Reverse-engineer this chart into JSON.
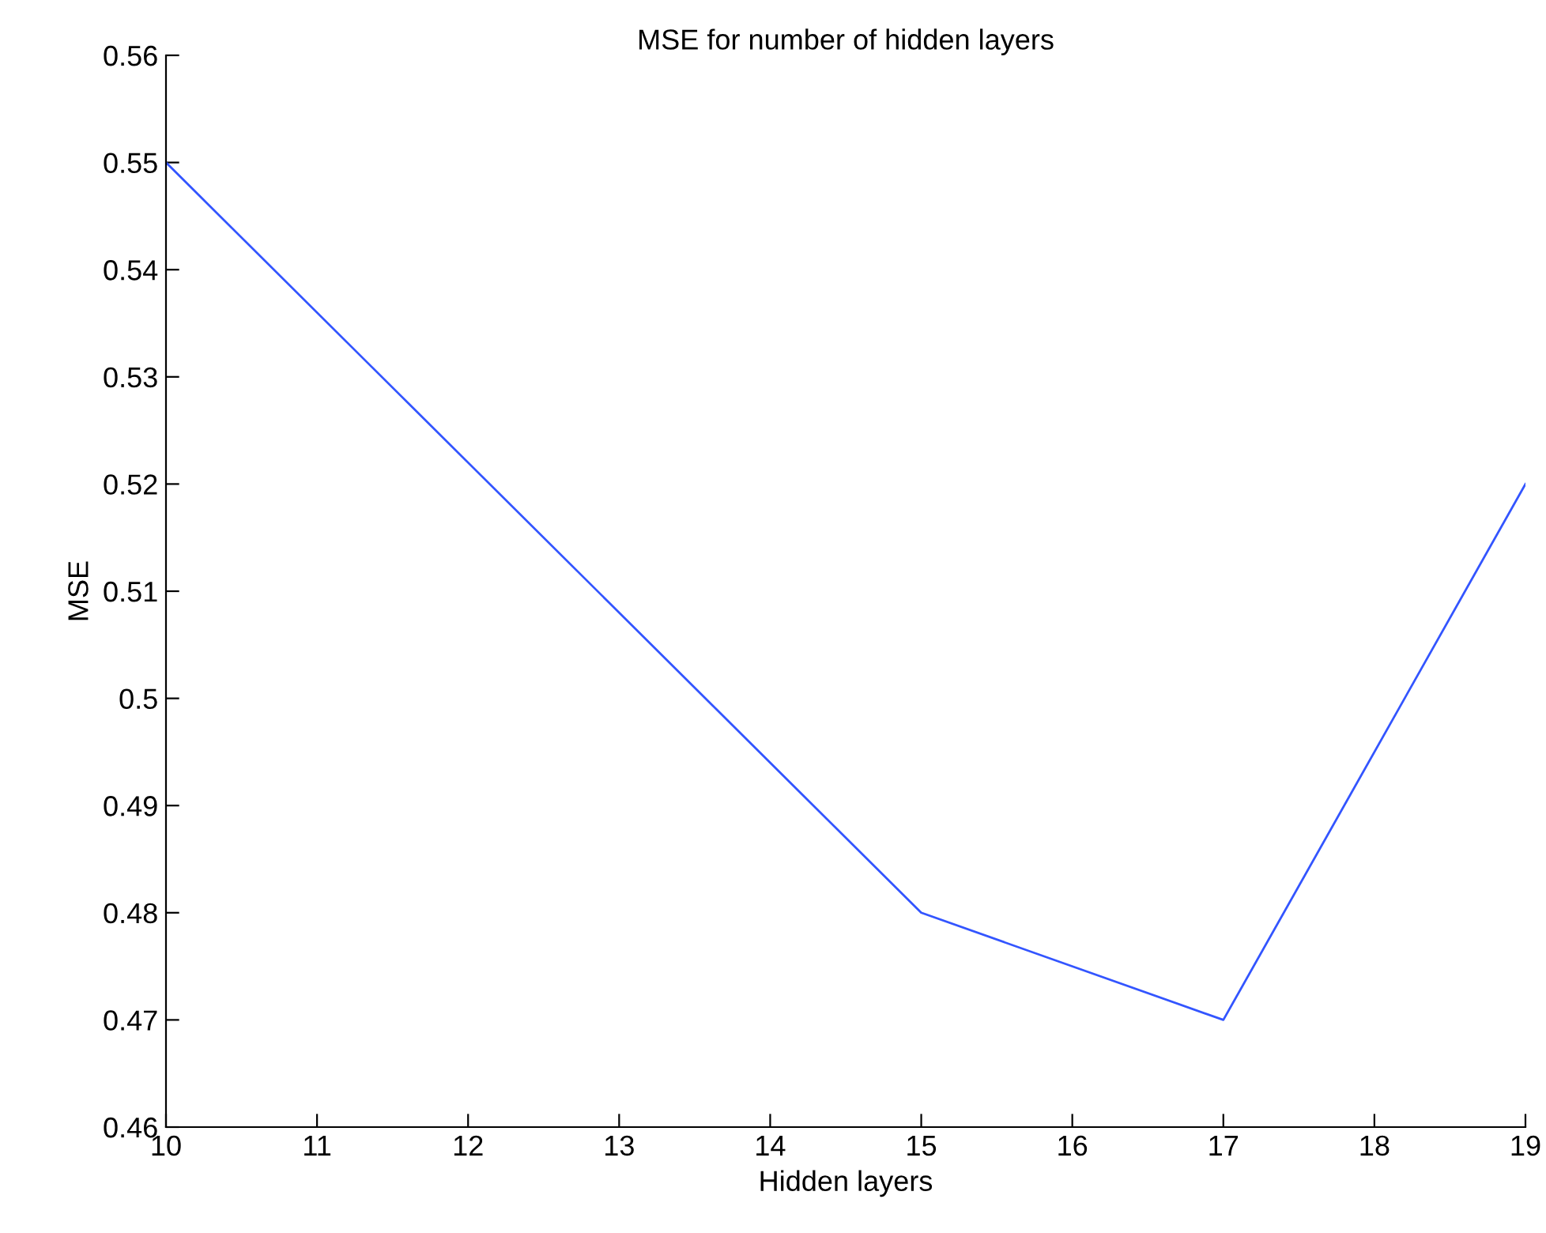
{
  "chart_data": {
    "type": "line",
    "title": "MSE for number of hidden layers",
    "xlabel": "Hidden layers",
    "ylabel": "MSE",
    "x": [
      10,
      15,
      17,
      19
    ],
    "series": [
      {
        "color": "#3355ff",
        "values": [
          0.55,
          0.48,
          0.47,
          0.52
        ]
      }
    ],
    "xlim": [
      10,
      19
    ],
    "xticks": [
      10,
      11,
      12,
      13,
      14,
      15,
      16,
      17,
      18,
      19
    ],
    "ylim": [
      0.46,
      0.56
    ],
    "yticks": [
      {
        "value": 0.46,
        "label": "0.46"
      },
      {
        "value": 0.47,
        "label": "0.47"
      },
      {
        "value": 0.48,
        "label": "0.48"
      },
      {
        "value": 0.49,
        "label": "0.49"
      },
      {
        "value": 0.5,
        "label": "0.5"
      },
      {
        "value": 0.51,
        "label": "0.51"
      },
      {
        "value": 0.52,
        "label": "0.52"
      },
      {
        "value": 0.53,
        "label": "0.53"
      },
      {
        "value": 0.54,
        "label": "0.54"
      },
      {
        "value": 0.55,
        "label": "0.55"
      },
      {
        "value": 0.56,
        "label": "0.56"
      }
    ],
    "grid": false,
    "legend": false
  }
}
